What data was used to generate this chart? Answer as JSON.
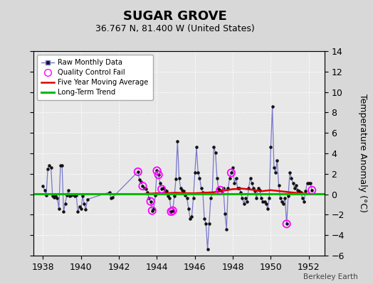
{
  "title": "SUGAR GROVE",
  "subtitle": "36.767 N, 81.400 W (United States)",
  "ylabel": "Temperature Anomaly (°C)",
  "credit": "Berkeley Earth",
  "ylim": [
    -6,
    14
  ],
  "yticks": [
    -6,
    -4,
    -2,
    0,
    2,
    4,
    6,
    8,
    10,
    12,
    14
  ],
  "xlim": [
    1937.5,
    1952.83
  ],
  "xticks": [
    1938,
    1940,
    1942,
    1944,
    1946,
    1948,
    1950,
    1952
  ],
  "bg_color": "#d8d8d8",
  "plot_bg": "#e8e8e8",
  "raw_color": "#7777cc",
  "raw_dot_color": "#111111",
  "qc_color": "#ff00ff",
  "ma_color": "#dd0000",
  "trend_color": "#00bb00",
  "raw_data": [
    [
      1938.0,
      0.8
    ],
    [
      1938.083,
      0.4
    ],
    [
      1938.167,
      -0.1
    ],
    [
      1938.25,
      2.5
    ],
    [
      1938.333,
      2.8
    ],
    [
      1938.417,
      2.6
    ],
    [
      1938.5,
      -0.2
    ],
    [
      1938.583,
      -0.3
    ],
    [
      1938.667,
      -0.2
    ],
    [
      1938.75,
      -0.4
    ],
    [
      1938.833,
      -1.4
    ],
    [
      1938.917,
      2.8
    ],
    [
      1939.0,
      2.8
    ],
    [
      1939.083,
      -1.7
    ],
    [
      1939.167,
      -0.9
    ],
    [
      1939.25,
      -0.1
    ],
    [
      1939.333,
      0.4
    ],
    [
      1939.417,
      -0.2
    ],
    [
      1939.5,
      -0.1
    ],
    [
      1939.583,
      -0.0
    ],
    [
      1939.667,
      -0.2
    ],
    [
      1939.75,
      -0.1
    ],
    [
      1939.833,
      -1.7
    ],
    [
      1939.917,
      -1.2
    ],
    [
      1940.0,
      -1.4
    ],
    [
      1940.083,
      -0.2
    ],
    [
      1940.167,
      -0.9
    ],
    [
      1940.25,
      -1.5
    ],
    [
      1940.333,
      -0.5
    ],
    [
      1941.5,
      0.2
    ],
    [
      1941.583,
      -0.4
    ],
    [
      1941.667,
      -0.3
    ],
    [
      1943.0,
      2.2
    ],
    [
      1943.083,
      1.4
    ],
    [
      1943.167,
      1.2
    ],
    [
      1943.25,
      0.8
    ],
    [
      1943.333,
      0.6
    ],
    [
      1943.417,
      0.5
    ],
    [
      1943.5,
      0.2
    ],
    [
      1943.583,
      -0.4
    ],
    [
      1943.667,
      -0.7
    ],
    [
      1943.75,
      -1.6
    ],
    [
      1943.833,
      -1.4
    ],
    [
      1943.917,
      -0.1
    ],
    [
      1944.0,
      2.3
    ],
    [
      1944.083,
      1.9
    ],
    [
      1944.167,
      1.1
    ],
    [
      1944.25,
      0.5
    ],
    [
      1944.333,
      0.6
    ],
    [
      1944.417,
      0.4
    ],
    [
      1944.5,
      0.3
    ],
    [
      1944.583,
      -0.2
    ],
    [
      1944.667,
      -0.4
    ],
    [
      1944.75,
      -1.7
    ],
    [
      1944.833,
      -1.6
    ],
    [
      1944.917,
      -0.2
    ],
    [
      1945.0,
      1.5
    ],
    [
      1945.083,
      5.2
    ],
    [
      1945.167,
      1.6
    ],
    [
      1945.25,
      0.6
    ],
    [
      1945.333,
      0.4
    ],
    [
      1945.417,
      0.3
    ],
    [
      1945.5,
      -0.1
    ],
    [
      1945.583,
      -0.4
    ],
    [
      1945.667,
      -1.4
    ],
    [
      1945.75,
      -2.4
    ],
    [
      1945.833,
      -2.2
    ],
    [
      1945.917,
      -0.4
    ],
    [
      1946.0,
      2.1
    ],
    [
      1946.083,
      4.6
    ],
    [
      1946.167,
      2.1
    ],
    [
      1946.25,
      1.6
    ],
    [
      1946.333,
      0.6
    ],
    [
      1946.417,
      0.2
    ],
    [
      1946.5,
      -2.4
    ],
    [
      1946.583,
      -2.9
    ],
    [
      1946.667,
      -5.4
    ],
    [
      1946.75,
      -2.9
    ],
    [
      1946.833,
      -0.4
    ],
    [
      1946.917,
      0.1
    ],
    [
      1947.0,
      4.6
    ],
    [
      1947.083,
      4.1
    ],
    [
      1947.167,
      1.6
    ],
    [
      1947.25,
      0.5
    ],
    [
      1947.333,
      0.4
    ],
    [
      1947.417,
      0.3
    ],
    [
      1947.5,
      0.6
    ],
    [
      1947.583,
      -1.9
    ],
    [
      1947.667,
      -3.4
    ],
    [
      1947.75,
      0.6
    ],
    [
      1947.833,
      1.6
    ],
    [
      1947.917,
      2.1
    ],
    [
      1948.0,
      2.6
    ],
    [
      1948.083,
      1.1
    ],
    [
      1948.167,
      1.6
    ],
    [
      1948.25,
      0.6
    ],
    [
      1948.333,
      0.6
    ],
    [
      1948.417,
      0.2
    ],
    [
      1948.5,
      -0.4
    ],
    [
      1948.583,
      -0.9
    ],
    [
      1948.667,
      -0.4
    ],
    [
      1948.75,
      -0.7
    ],
    [
      1948.833,
      0.6
    ],
    [
      1948.917,
      1.6
    ],
    [
      1949.0,
      1.1
    ],
    [
      1949.083,
      0.6
    ],
    [
      1949.167,
      0.3
    ],
    [
      1949.25,
      -0.4
    ],
    [
      1949.333,
      0.6
    ],
    [
      1949.417,
      0.4
    ],
    [
      1949.5,
      -0.4
    ],
    [
      1949.583,
      -0.7
    ],
    [
      1949.667,
      -0.7
    ],
    [
      1949.75,
      -0.9
    ],
    [
      1949.833,
      -1.4
    ],
    [
      1949.917,
      -0.4
    ],
    [
      1950.0,
      4.6
    ],
    [
      1950.083,
      8.6
    ],
    [
      1950.167,
      2.6
    ],
    [
      1950.25,
      2.1
    ],
    [
      1950.333,
      3.3
    ],
    [
      1950.417,
      0.9
    ],
    [
      1950.5,
      -0.4
    ],
    [
      1950.583,
      -0.7
    ],
    [
      1950.667,
      -0.9
    ],
    [
      1950.75,
      -0.4
    ],
    [
      1950.833,
      -2.9
    ],
    [
      1950.917,
      -0.2
    ],
    [
      1951.0,
      2.1
    ],
    [
      1951.083,
      1.6
    ],
    [
      1951.167,
      1.1
    ],
    [
      1951.25,
      0.6
    ],
    [
      1951.333,
      0.9
    ],
    [
      1951.417,
      0.4
    ],
    [
      1951.5,
      0.3
    ],
    [
      1951.583,
      0.2
    ],
    [
      1951.667,
      -0.4
    ],
    [
      1951.75,
      -0.7
    ],
    [
      1951.833,
      0.3
    ],
    [
      1951.917,
      1.1
    ],
    [
      1952.0,
      1.1
    ],
    [
      1952.083,
      1.1
    ],
    [
      1952.167,
      0.4
    ]
  ],
  "qc_fails": [
    [
      1943.0,
      2.2
    ],
    [
      1943.25,
      0.8
    ],
    [
      1943.667,
      -0.7
    ],
    [
      1943.75,
      -1.6
    ],
    [
      1944.0,
      2.3
    ],
    [
      1944.083,
      1.9
    ],
    [
      1944.25,
      0.5
    ],
    [
      1944.75,
      -1.7
    ],
    [
      1944.833,
      -1.6
    ],
    [
      1947.333,
      0.4
    ],
    [
      1947.917,
      2.1
    ],
    [
      1950.833,
      -2.9
    ],
    [
      1952.167,
      0.4
    ]
  ],
  "moving_avg_x": [
    1943.0,
    1943.5,
    1944.0,
    1944.5,
    1945.0,
    1945.5,
    1946.0,
    1946.5,
    1947.0,
    1947.5,
    1948.0,
    1948.5,
    1949.0,
    1949.5,
    1950.0,
    1950.5,
    1951.0,
    1951.5,
    1952.0
  ],
  "moving_avg_y": [
    0.0,
    0.05,
    0.1,
    0.1,
    0.15,
    0.1,
    0.1,
    0.15,
    0.2,
    0.35,
    0.5,
    0.55,
    0.45,
    0.3,
    0.4,
    0.3,
    0.2,
    0.1,
    0.05
  ],
  "trend_x": [
    1937.5,
    1952.83
  ],
  "trend_y": [
    0.05,
    0.05
  ]
}
